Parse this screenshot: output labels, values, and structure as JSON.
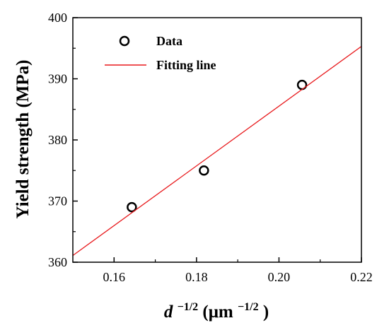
{
  "chart_data": {
    "type": "scatter",
    "xlim": [
      0.15,
      0.22
    ],
    "ylim": [
      360,
      400
    ],
    "x_ticks": [
      "0.16",
      "0.18",
      "0.20",
      "0.22"
    ],
    "x_tick_values": [
      0.16,
      0.18,
      0.2,
      0.22
    ],
    "y_ticks": [
      "360",
      "370",
      "380",
      "390",
      "400"
    ],
    "y_tick_values": [
      360,
      370,
      380,
      390,
      400
    ],
    "xlabel": {
      "d": "d",
      "d_exp": "−1/2",
      "unit_open": " (μm",
      "unit_exp": "−1/2",
      "unit_close": ")"
    },
    "ylabel": "Yield strength (MPa)",
    "legend": {
      "position": "top-left",
      "data_label": "Data",
      "fit_label": "Fitting line"
    },
    "grid": false,
    "series": [
      {
        "name": "Data",
        "marker": "open-circle",
        "color": "#000000",
        "x": [
          0.1643,
          0.1818,
          0.2056
        ],
        "y": [
          369,
          375,
          389
        ]
      },
      {
        "name": "Fitting line",
        "type": "line",
        "color": "#e8191c",
        "x": [
          0.15,
          0.22
        ],
        "y": [
          361.1,
          395.3
        ]
      }
    ]
  }
}
